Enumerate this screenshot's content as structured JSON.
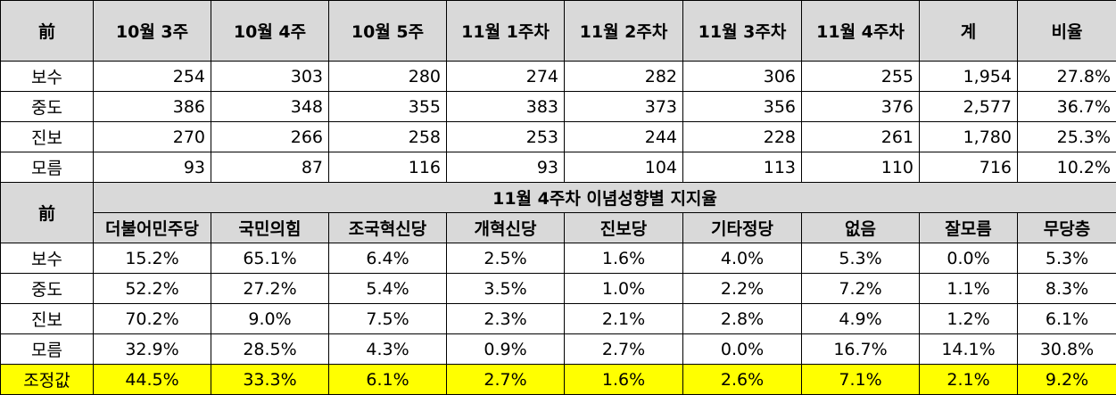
{
  "weekly": {
    "corner": "前",
    "headers": [
      "10월 3주",
      "10월 4주",
      "10월 5주",
      "11월 1주차",
      "11월 2주차",
      "11월 3주차",
      "11월 4주차",
      "계",
      "비율"
    ],
    "rows": [
      {
        "label": "보수",
        "values": [
          "254",
          "303",
          "280",
          "274",
          "282",
          "306",
          "255",
          "1,954",
          "27.8%"
        ]
      },
      {
        "label": "중도",
        "values": [
          "386",
          "348",
          "355",
          "383",
          "373",
          "356",
          "376",
          "2,577",
          "36.7%"
        ]
      },
      {
        "label": "진보",
        "values": [
          "270",
          "266",
          "258",
          "253",
          "244",
          "228",
          "261",
          "1,780",
          "25.3%"
        ]
      },
      {
        "label": "모름",
        "values": [
          "93",
          "87",
          "116",
          "93",
          "104",
          "113",
          "110",
          "716",
          "10.2%"
        ]
      }
    ]
  },
  "support": {
    "corner": "前",
    "title": "11월 4주차 이념성향별 지지율",
    "headers": [
      "더불어민주당",
      "국민의힘",
      "조국혁신당",
      "개혁신당",
      "진보당",
      "기타정당",
      "없음",
      "잘모름",
      "무당층"
    ],
    "rows": [
      {
        "label": "보수",
        "values": [
          "15.2%",
          "65.1%",
          "6.4%",
          "2.5%",
          "1.6%",
          "4.0%",
          "5.3%",
          "0.0%",
          "5.3%"
        ]
      },
      {
        "label": "중도",
        "values": [
          "52.2%",
          "27.2%",
          "5.4%",
          "3.5%",
          "1.0%",
          "2.2%",
          "7.2%",
          "1.1%",
          "8.3%"
        ]
      },
      {
        "label": "진보",
        "values": [
          "70.2%",
          "9.0%",
          "7.5%",
          "2.3%",
          "2.1%",
          "2.8%",
          "4.9%",
          "1.2%",
          "6.1%"
        ]
      },
      {
        "label": "모름",
        "values": [
          "32.9%",
          "28.5%",
          "4.3%",
          "0.9%",
          "2.7%",
          "0.0%",
          "16.7%",
          "14.1%",
          "30.8%"
        ]
      }
    ],
    "adjusted": {
      "label": "조정값",
      "values": [
        "44.5%",
        "33.3%",
        "6.1%",
        "2.7%",
        "1.6%",
        "2.6%",
        "7.1%",
        "2.1%",
        "9.2%"
      ]
    }
  },
  "colors": {
    "header_bg": "#d9d9d9",
    "highlight": "#ffff00",
    "border": "#000000"
  }
}
